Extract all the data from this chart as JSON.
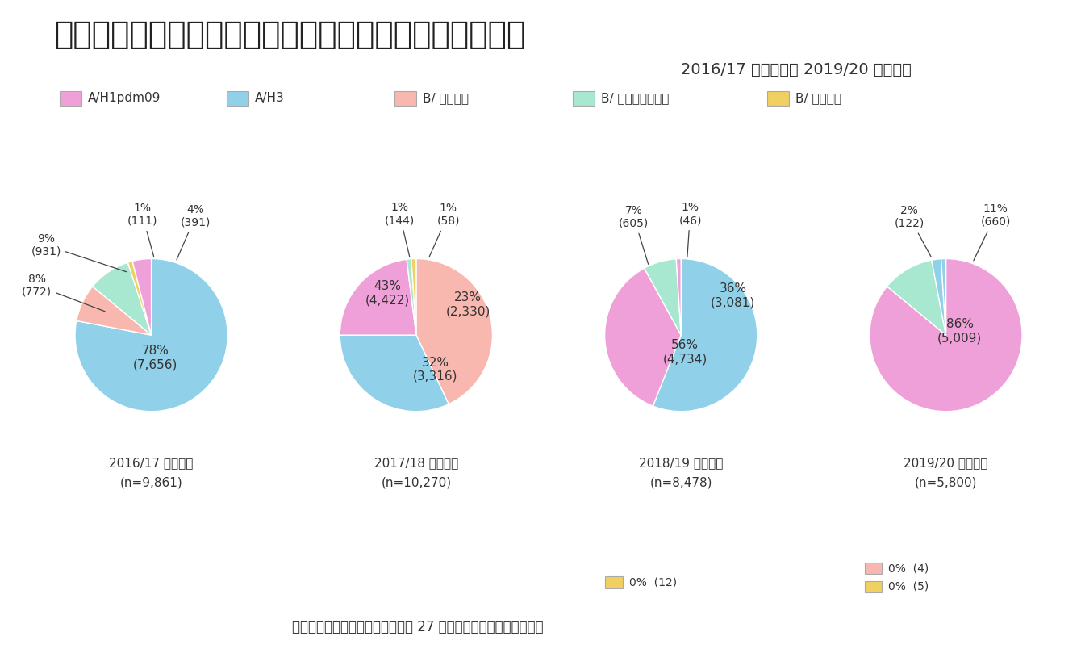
{
  "title": "図２　インフルエンザウイルス分離・検出報告数の割合",
  "subtitle": "2016/17 シーズン～ 2019/20 シーズン",
  "background_color": "#ffffff",
  "legend_labels": [
    "A/H1pdm09",
    "A/H3",
    "B/ 山形系統",
    "B/ ビクトリア系統",
    "B/ 系統不明"
  ],
  "legend_colors": [
    "#f0a0d8",
    "#90d0e8",
    "#f8b8b0",
    "#a8e8d0",
    "#f0d060"
  ],
  "pies": [
    {
      "title": "2016/17 シーズン",
      "subtitle": "(n=9,861)",
      "sizes": [
        78,
        8,
        9,
        1,
        4
      ],
      "colors": [
        "#90d0e8",
        "#f8b8b0",
        "#a8e8d0",
        "#f0d060",
        "#f0a0d8"
      ],
      "startangle": 90,
      "extra_notes": []
    },
    {
      "title": "2017/18 シーズン",
      "subtitle": "(n=10,270)",
      "sizes": [
        43,
        32,
        23,
        1,
        1
      ],
      "colors": [
        "#f8b8b0",
        "#90d0e8",
        "#f0a0d8",
        "#a8e8d0",
        "#f0d060"
      ],
      "startangle": 90,
      "extra_notes": []
    },
    {
      "title": "2018/19 シーズン",
      "subtitle": "(n=8,478)",
      "sizes": [
        56,
        36,
        7,
        1
      ],
      "colors": [
        "#90d0e8",
        "#f0a0d8",
        "#a8e8d0",
        "#f0a0d8"
      ],
      "startangle": 90,
      "extra_notes": [
        {
          "color": "#f0d060",
          "text": "0%  (12)"
        }
      ]
    },
    {
      "title": "2019/20 シーズン",
      "subtitle": "(n=5,800)",
      "sizes": [
        86,
        11,
        2,
        1
      ],
      "colors": [
        "#f0a0d8",
        "#a8e8d0",
        "#90d0e8",
        "#90d0e8"
      ],
      "startangle": 90,
      "extra_notes": [
        {
          "color": "#f8b8b0",
          "text": "0%  (4)"
        },
        {
          "color": "#f0d060",
          "text": "0%  (5)"
        }
      ]
    }
  ],
  "footer": "国立感染症研究所　令和２年８月 27 日の発表をもとにテルモ作成"
}
